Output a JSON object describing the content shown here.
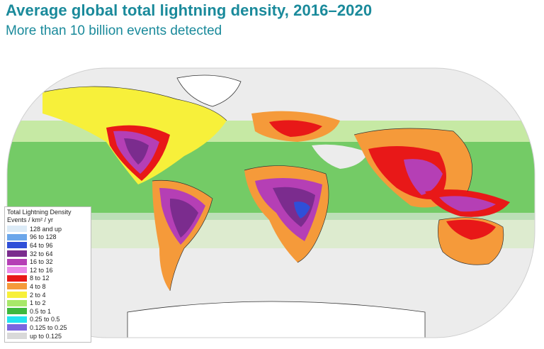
{
  "header": {
    "title": "Average global total lightning density, 2016–2020",
    "subtitle": "More than 10 billion events detected"
  },
  "legend": {
    "title": "Total Lightning Density",
    "units": "Events / km² / yr",
    "items": [
      {
        "label": "128 and up",
        "color": "#dcebf7"
      },
      {
        "label": "96 to 128",
        "color": "#6ba6ea"
      },
      {
        "label": "64 to 96",
        "color": "#2f4fd8"
      },
      {
        "label": "32 to 64",
        "color": "#7b2c8e"
      },
      {
        "label": "16 to 32",
        "color": "#b53fb5"
      },
      {
        "label": "12 to 16",
        "color": "#ea8be8"
      },
      {
        "label": "8 to 12",
        "color": "#e81818"
      },
      {
        "label": "4 to 8",
        "color": "#f59a3a"
      },
      {
        "label": "2 to 4",
        "color": "#f7f03a"
      },
      {
        "label": "1 to 2",
        "color": "#a8e86a"
      },
      {
        "label": "0.5 to 1",
        "color": "#3eb83e"
      },
      {
        "label": "0.25 to 0.5",
        "color": "#22e3f0"
      },
      {
        "label": "0.125 to 0.25",
        "color": "#7a66e0"
      },
      {
        "label": "up to 0.125",
        "color": "#d9d9d9"
      }
    ]
  }
}
